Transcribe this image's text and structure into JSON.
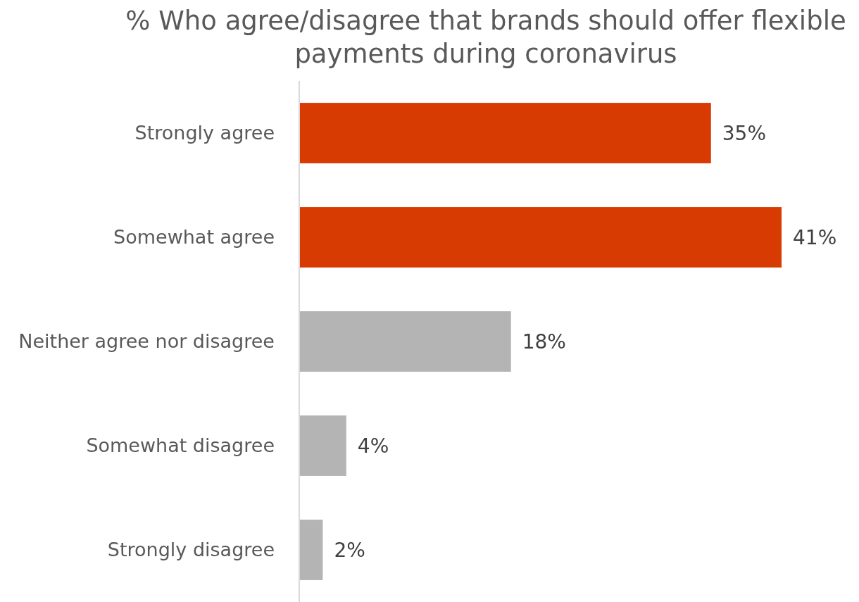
{
  "chart_data": {
    "type": "bar",
    "orientation": "horizontal",
    "title": "% Who agree/disagree that brands should offer flexible payments during coronavirus",
    "categories": [
      "Strongly agree",
      "Somewhat agree",
      "Neither agree nor disagree",
      "Somewhat disagree",
      "Strongly disagree"
    ],
    "values": [
      35,
      41,
      18,
      4,
      2
    ],
    "colors": [
      "#d83b01",
      "#d83b01",
      "#b4b4b4",
      "#b4b4b4",
      "#b4b4b4"
    ],
    "value_labels": [
      "35%",
      "41%",
      "18%",
      "4%",
      "2%"
    ],
    "tick_labels": "y"
  }
}
